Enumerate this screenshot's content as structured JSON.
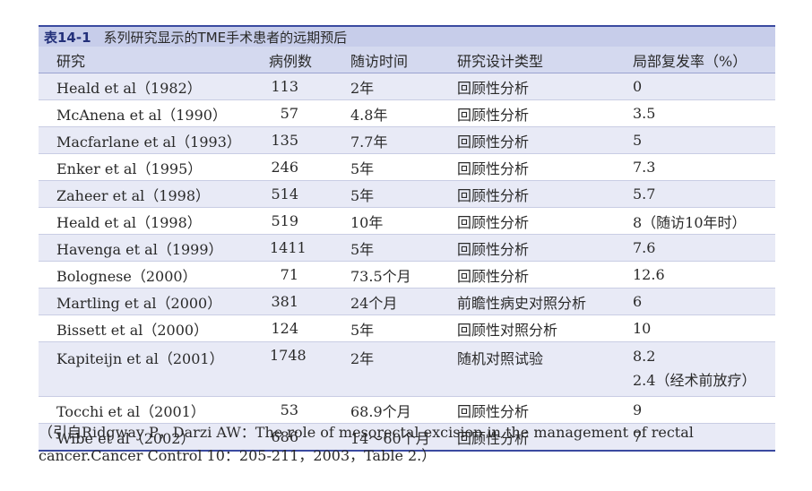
{
  "title": {
    "number": "表14-1",
    "text": "系列研究显示的TME手术患者的远期预后"
  },
  "headers": [
    "研究",
    "病例数",
    "随访时间",
    "研究设计类型",
    "局部复发率（%）"
  ],
  "rows": [
    {
      "study": "Heald et al（1982）",
      "n": "113",
      "followup": "2年",
      "design": "回顾性分析",
      "rate": "0"
    },
    {
      "study": "McAnena et al（1990）",
      "n": "57",
      "followup": "4.8年",
      "design": "回顾性分析",
      "rate": "3.5"
    },
    {
      "study": "Macfarlane et al（1993）",
      "n": "135",
      "followup": "7.7年",
      "design": "回顾性分析",
      "rate": "5"
    },
    {
      "study": "Enker et al（1995）",
      "n": "246",
      "followup": "5年",
      "design": "回顾性分析",
      "rate": "7.3"
    },
    {
      "study": "Zaheer et al（1998）",
      "n": "514",
      "followup": "5年",
      "design": "回顾性分析",
      "rate": "5.7"
    },
    {
      "study": "Heald et al（1998）",
      "n": "519",
      "followup": "10年",
      "design": "回顾性分析",
      "rate": "8（随访10年时）"
    },
    {
      "study": "Havenga et al（1999）",
      "n": "1411",
      "followup": "5年",
      "design": "回顾性分析",
      "rate": "7.6"
    },
    {
      "study": "Bolognese（2000）",
      "n": "71",
      "followup": "73.5个月",
      "design": "回顾性分析",
      "rate": "12.6"
    },
    {
      "study": "Martling et al（2000）",
      "n": "381",
      "followup": "24个月",
      "design": "前瞻性病史对照分析",
      "rate": "6"
    },
    {
      "study": "Bissett et al（2000）",
      "n": "124",
      "followup": "5年",
      "design": "回顾性对照分析",
      "rate": "10"
    },
    {
      "study": "Kapiteijn et al（2001）",
      "n": "1748",
      "followup": "2年",
      "design": "随机对照试验",
      "rate": "8.2",
      "rate2": "2.4（经术前放疗）"
    },
    {
      "study": "Tocchi et al（2001）",
      "n": "53",
      "followup": "68.9个月",
      "design": "回顾性分析",
      "rate": "9"
    },
    {
      "study": "Wibe et al（2002）",
      "n": "686",
      "followup": "14～60个月",
      "design": "回顾性分析",
      "rate": "7"
    }
  ],
  "note": "（引自Ridgway P，Darzi AW：The role of mesorectal excision in the management of rectal cancer.Cancer Control 10：205-211，2003，Table 2.）"
}
